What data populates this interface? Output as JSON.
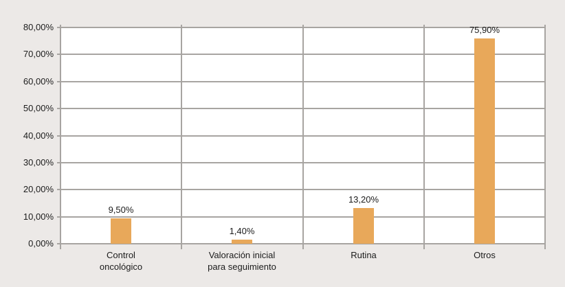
{
  "colors": {
    "page_background": "#ece9e7",
    "plot_background": "#ffffff",
    "gridline": "#a7a4a1",
    "bar_fill": "#e8a85a",
    "text": "#1b1b1b"
  },
  "chart_data": {
    "type": "bar",
    "title": "",
    "xlabel": "",
    "ylabel": "",
    "categories": [
      "Control oncológico",
      "Valoración inicial para seguimiento",
      "Rutina",
      "Otros"
    ],
    "category_label_lines": [
      [
        "Control",
        "oncológico"
      ],
      [
        "Valoración inicial",
        "para seguimiento"
      ],
      [
        "Rutina"
      ],
      [
        "Otros"
      ]
    ],
    "values": [
      9.5,
      1.4,
      13.2,
      75.9
    ],
    "value_labels": [
      "9,50%",
      "1,40%",
      "13,20%",
      "75,90%"
    ],
    "y_tick_labels": [
      "0,00%",
      "10,00%",
      "20,00%",
      "30,00%",
      "40,00%",
      "50,00%",
      "60,00%",
      "70,00%",
      "80,00%"
    ],
    "ylim": [
      0,
      80
    ],
    "y_step": 10,
    "grid": true,
    "legend_position": "none"
  }
}
